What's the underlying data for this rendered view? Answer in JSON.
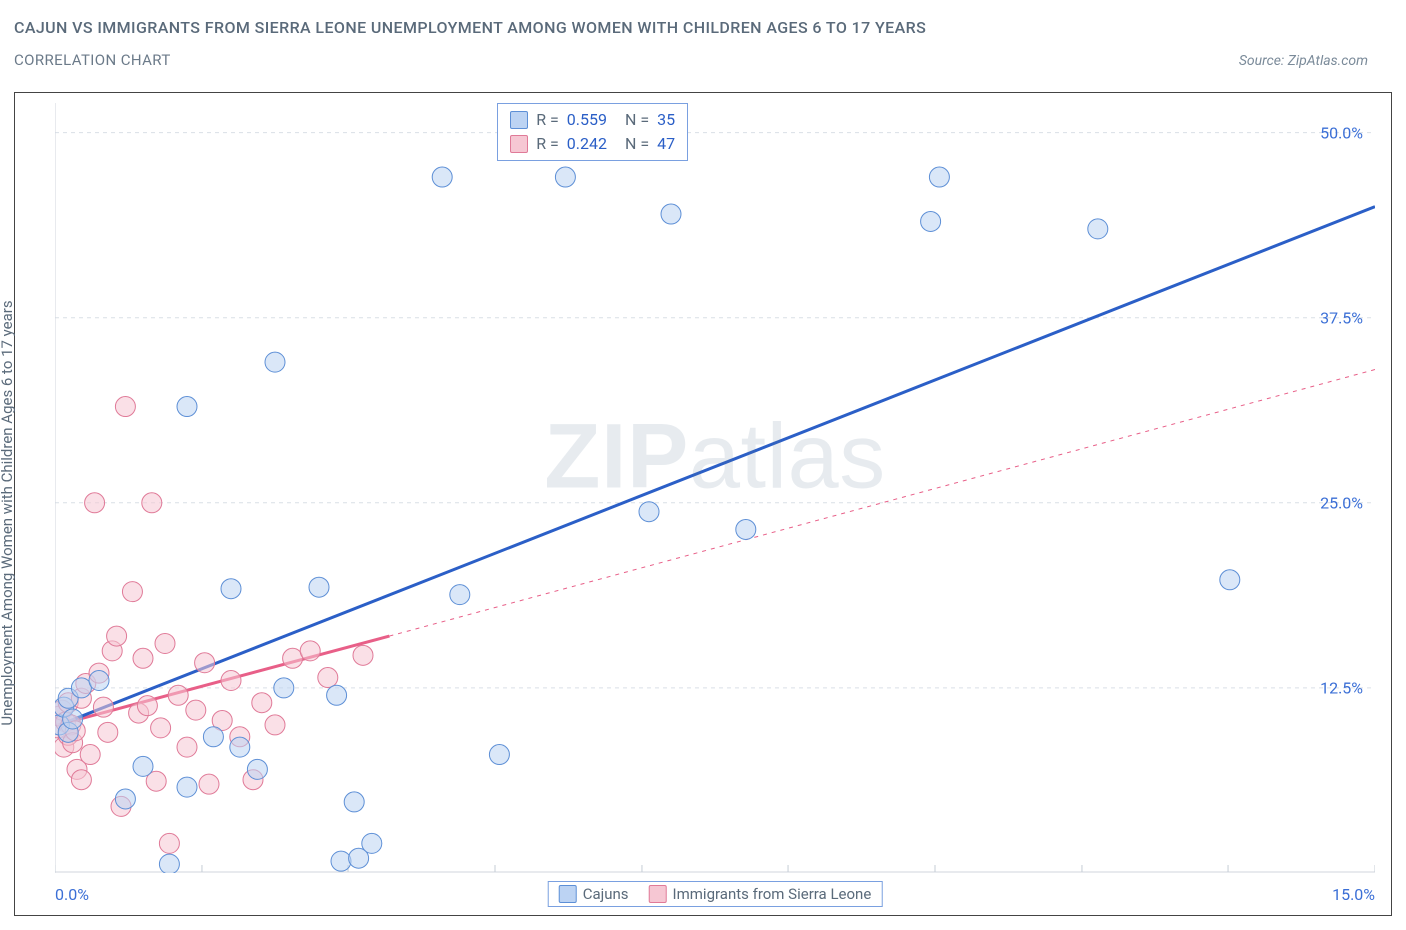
{
  "title": "CAJUN VS IMMIGRANTS FROM SIERRA LEONE UNEMPLOYMENT AMONG WOMEN WITH CHILDREN AGES 6 TO 17 YEARS",
  "subtitle": "CORRELATION CHART",
  "source": "Source: ZipAtlas.com",
  "watermark_a": "ZIP",
  "watermark_b": "atlas",
  "chart": {
    "type": "scatter",
    "background_color": "#ffffff",
    "grid_color": "#d9dfe6",
    "grid_dash": "4 4",
    "axis_color": "#d0d6de",
    "tick_color": "#c5ccd5",
    "marker_radius": 10,
    "marker_stroke_width": 1,
    "marker_opacity": 0.55,
    "y_axis_label": "Unemployment Among Women with Children Ages 6 to 17 years",
    "xlim": [
      0,
      15
    ],
    "ylim": [
      0,
      52
    ],
    "y_ticks": [
      12.5,
      25.0,
      37.5,
      50.0
    ],
    "y_tick_labels": [
      "12.5%",
      "25.0%",
      "37.5%",
      "50.0%"
    ],
    "x_ticks": [
      0,
      1.67,
      3.33,
      5.0,
      6.67,
      8.33,
      10.0,
      11.67,
      13.33,
      15.0
    ],
    "x_left_label": "0.0%",
    "x_right_label": "15.0%",
    "series": [
      {
        "id": "cajuns",
        "name": "Cajuns",
        "fill": "#bcd3f3",
        "stroke": "#5d8fd6",
        "line_color": "#2b5fc7",
        "line_width": 3,
        "line_dash": "none",
        "R": "0.559",
        "N": "35",
        "trend": {
          "x1": 0.05,
          "y1": 10.0,
          "x2": 15.0,
          "y2": 45.0
        },
        "points": [
          [
            0.05,
            10
          ],
          [
            0.1,
            11.2
          ],
          [
            0.15,
            9.5
          ],
          [
            0.15,
            11.8
          ],
          [
            0.2,
            10.4
          ],
          [
            0.3,
            12.5
          ],
          [
            0.5,
            13
          ],
          [
            0.8,
            5
          ],
          [
            1.0,
            7.2
          ],
          [
            1.3,
            0.6
          ],
          [
            1.5,
            31.5
          ],
          [
            1.5,
            5.8
          ],
          [
            1.8,
            9.2
          ],
          [
            2.0,
            19.2
          ],
          [
            2.1,
            8.5
          ],
          [
            2.3,
            7
          ],
          [
            2.5,
            34.5
          ],
          [
            2.6,
            12.5
          ],
          [
            3.0,
            19.3
          ],
          [
            3.2,
            12
          ],
          [
            3.25,
            0.8
          ],
          [
            3.4,
            4.8
          ],
          [
            3.45,
            1.0
          ],
          [
            3.6,
            2
          ],
          [
            4.4,
            47
          ],
          [
            4.6,
            18.8
          ],
          [
            5.05,
            8
          ],
          [
            5.8,
            47
          ],
          [
            6.75,
            24.4
          ],
          [
            7.0,
            44.5
          ],
          [
            7.85,
            23.2
          ],
          [
            9.95,
            44
          ],
          [
            10.05,
            47
          ],
          [
            11.85,
            43.5
          ],
          [
            13.35,
            19.8
          ]
        ]
      },
      {
        "id": "immigrants",
        "name": "Immigrants from Sierra Leone",
        "fill": "#f6c7d3",
        "stroke": "#e07a98",
        "line_color": "#e85f88",
        "line_width": 3,
        "line_dash": "none",
        "R": "0.242",
        "N": "47",
        "trend": {
          "x1": 0.03,
          "y1": 10.0,
          "x2": 3.8,
          "y2": 16.0
        },
        "trend_ext": {
          "x1": 3.8,
          "y1": 16.0,
          "x2": 15.0,
          "y2": 34.0,
          "dash": "4 5",
          "width": 1
        },
        "points": [
          [
            0.03,
            9.8
          ],
          [
            0.05,
            10.6
          ],
          [
            0.08,
            11
          ],
          [
            0.1,
            8.5
          ],
          [
            0.12,
            10.2
          ],
          [
            0.15,
            9.3
          ],
          [
            0.15,
            11.5
          ],
          [
            0.18,
            10
          ],
          [
            0.2,
            8.8
          ],
          [
            0.23,
            9.6
          ],
          [
            0.25,
            7
          ],
          [
            0.3,
            11.8
          ],
          [
            0.3,
            6.3
          ],
          [
            0.35,
            12.8
          ],
          [
            0.4,
            8
          ],
          [
            0.45,
            25
          ],
          [
            0.5,
            13.5
          ],
          [
            0.55,
            11.2
          ],
          [
            0.6,
            9.5
          ],
          [
            0.65,
            15
          ],
          [
            0.7,
            16
          ],
          [
            0.75,
            4.5
          ],
          [
            0.8,
            31.5
          ],
          [
            0.88,
            19
          ],
          [
            0.95,
            10.8
          ],
          [
            1.0,
            14.5
          ],
          [
            1.05,
            11.3
          ],
          [
            1.1,
            25
          ],
          [
            1.15,
            6.2
          ],
          [
            1.2,
            9.8
          ],
          [
            1.25,
            15.5
          ],
          [
            1.3,
            2
          ],
          [
            1.4,
            12
          ],
          [
            1.5,
            8.5
          ],
          [
            1.6,
            11
          ],
          [
            1.7,
            14.2
          ],
          [
            1.75,
            6
          ],
          [
            1.9,
            10.3
          ],
          [
            2.0,
            13
          ],
          [
            2.1,
            9.2
          ],
          [
            2.25,
            6.3
          ],
          [
            2.35,
            11.5
          ],
          [
            2.5,
            10
          ],
          [
            2.7,
            14.5
          ],
          [
            2.9,
            15
          ],
          [
            3.1,
            13.2
          ],
          [
            3.5,
            14.7
          ]
        ]
      }
    ],
    "stats_box": {
      "left_pct": 33.5,
      "top_pct": 0
    },
    "legend": {
      "swatch_fill_0": "#bcd3f3",
      "swatch_stroke_0": "#5d8fd6",
      "swatch_fill_1": "#f6c7d3",
      "swatch_stroke_1": "#e07a98"
    }
  }
}
